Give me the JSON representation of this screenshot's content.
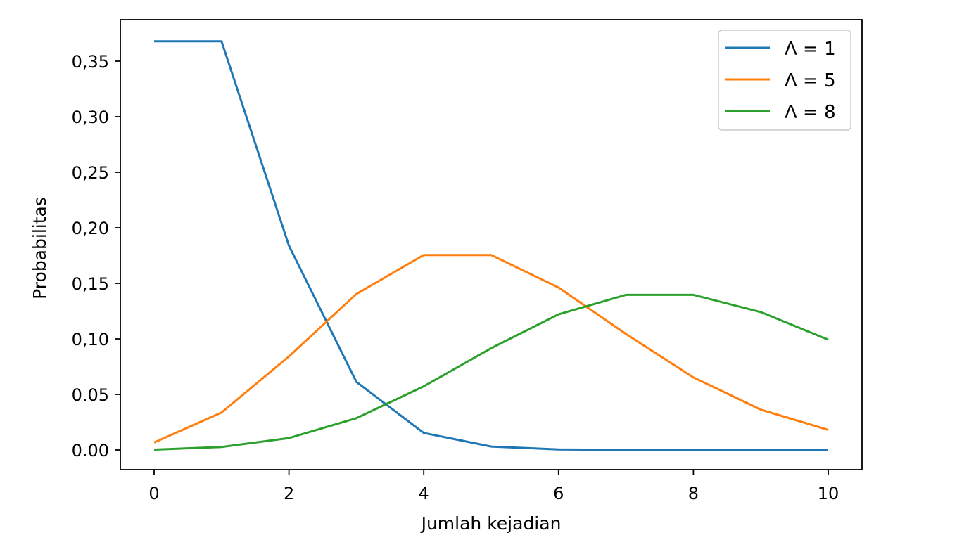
{
  "chart_data": {
    "type": "line",
    "title": "",
    "xlabel": "Jumlah kejadian",
    "ylabel": "Probabilitas",
    "xlim": [
      -0.5,
      10.5
    ],
    "ylim": [
      -0.018,
      0.386
    ],
    "grid": false,
    "legend_placement": "top-right",
    "x": [
      0,
      1,
      2,
      3,
      4,
      5,
      6,
      7,
      8,
      9,
      10
    ],
    "x_ticks": [
      0,
      2,
      4,
      6,
      8,
      10
    ],
    "x_tick_labels": [
      "0",
      "2",
      "4",
      "6",
      "8",
      "10"
    ],
    "y_ticks": [
      0,
      0.05,
      0.1,
      0.15,
      0.2,
      0.25,
      0.3,
      0.35
    ],
    "y_tick_labels": [
      "0.00",
      "0.05",
      "0,10",
      "0,15",
      "0,20",
      "0,25",
      "0,30",
      "0,35"
    ],
    "series": [
      {
        "name": "Λ = 1",
        "color": "#1f77b4",
        "values": [
          0.3679,
          0.3679,
          0.1839,
          0.0613,
          0.0153,
          0.0031,
          0.0005,
          0.0001,
          0.0,
          0.0,
          0.0
        ]
      },
      {
        "name": "Λ = 5",
        "color": "#ff7f0e",
        "values": [
          0.0067,
          0.0337,
          0.0842,
          0.1404,
          0.1755,
          0.1755,
          0.1462,
          0.1044,
          0.0653,
          0.0363,
          0.0181
        ]
      },
      {
        "name": "Λ = 8",
        "color": "#2ca02c",
        "values": [
          0.0003,
          0.0027,
          0.0107,
          0.0286,
          0.0573,
          0.0916,
          0.1221,
          0.1396,
          0.1396,
          0.1241,
          0.0993
        ]
      }
    ]
  }
}
